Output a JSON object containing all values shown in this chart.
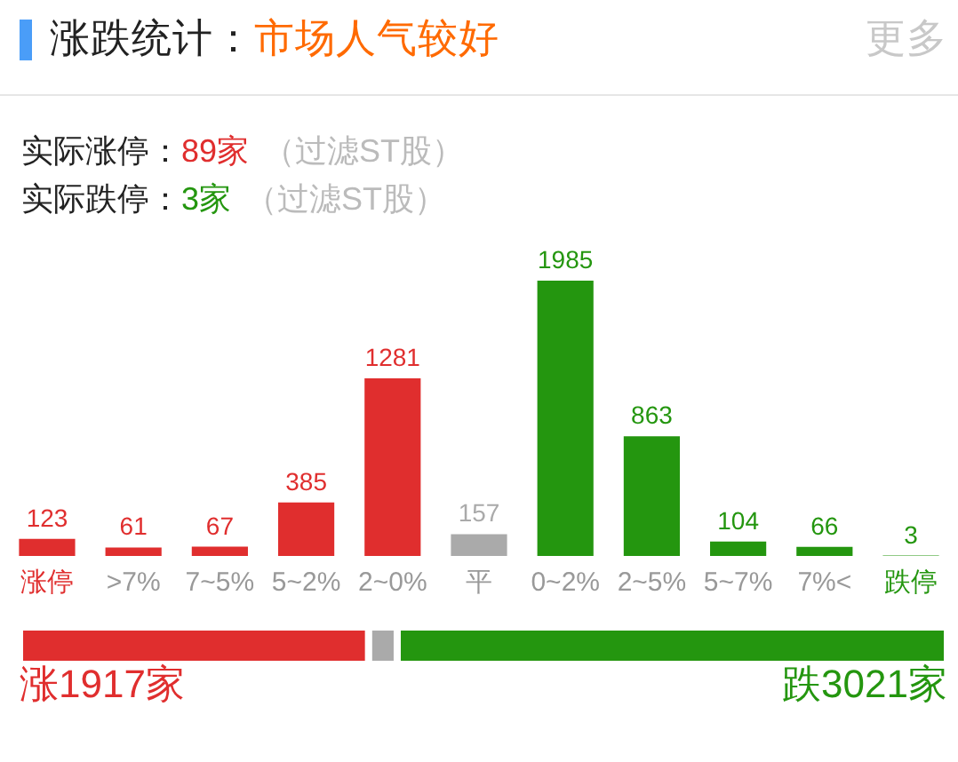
{
  "chart_data": [
    {
      "type": "bar",
      "title": "涨跌统计：",
      "subtitle": "市场人气较好",
      "annotations": [
        "更多",
        "实际涨停：",
        "89家",
        "（过滤ST股）",
        "实际跌停：",
        "3家",
        "（过滤ST股）"
      ],
      "categories": [
        "涨停",
        ">7%",
        "7~5%",
        "5~2%",
        "2~0%",
        "平",
        "0~2%",
        "2~5%",
        "5~7%",
        "7%<",
        "跌停"
      ],
      "values": [
        123,
        61,
        67,
        385,
        1281,
        157,
        1985,
        863,
        104,
        66,
        3
      ],
      "colors": [
        "#e02e2e",
        "#e02e2e",
        "#e02e2e",
        "#e02e2e",
        "#e02e2e",
        "#aaaaaa",
        "#24960f",
        "#24960f",
        "#24960f",
        "#24960f",
        "#24960f"
      ],
      "data_labels": true,
      "tick_labels": "x"
    },
    {
      "type": "bar",
      "orientation": "horizontal",
      "stacked": true,
      "tick_labels": false,
      "categories": [
        null
      ],
      "series": [
        {
          "color": "#e02e2e",
          "values": [
            1917
          ],
          "value_labels": [
            "涨1917家"
          ]
        },
        {
          "color": "#aaaaaa",
          "values": [
            157
          ],
          "value_labels": [
            null
          ]
        },
        {
          "color": "#24960f",
          "values": [
            3021
          ],
          "value_labels": [
            "跌3021家"
          ]
        }
      ]
    }
  ]
}
